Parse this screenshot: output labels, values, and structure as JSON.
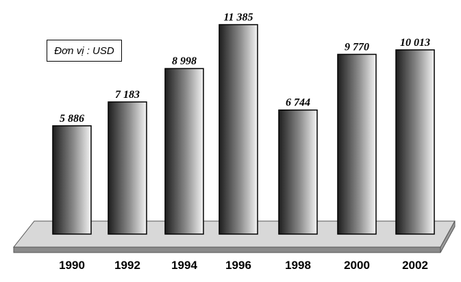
{
  "unit_label": "Đơn vị : USD",
  "chart_data": {
    "type": "bar",
    "categories": [
      "1990",
      "1992",
      "1994",
      "1996",
      "1998",
      "2000",
      "2002"
    ],
    "values": [
      5886,
      7183,
      8998,
      11385,
      6744,
      9770,
      10013
    ],
    "value_labels": [
      "5 886",
      "7 183",
      "8 998",
      "11 385",
      "6 744",
      "9 770",
      "10 013"
    ],
    "title": "",
    "xlabel": "",
    "ylabel": "",
    "grid": false,
    "legend": "none",
    "colors": {
      "bar_dark": "#1e1e1e",
      "bar_light": "#f4f4f4",
      "platform_top": "#d8d8d8",
      "platform_front": "#8a8a8a"
    }
  }
}
